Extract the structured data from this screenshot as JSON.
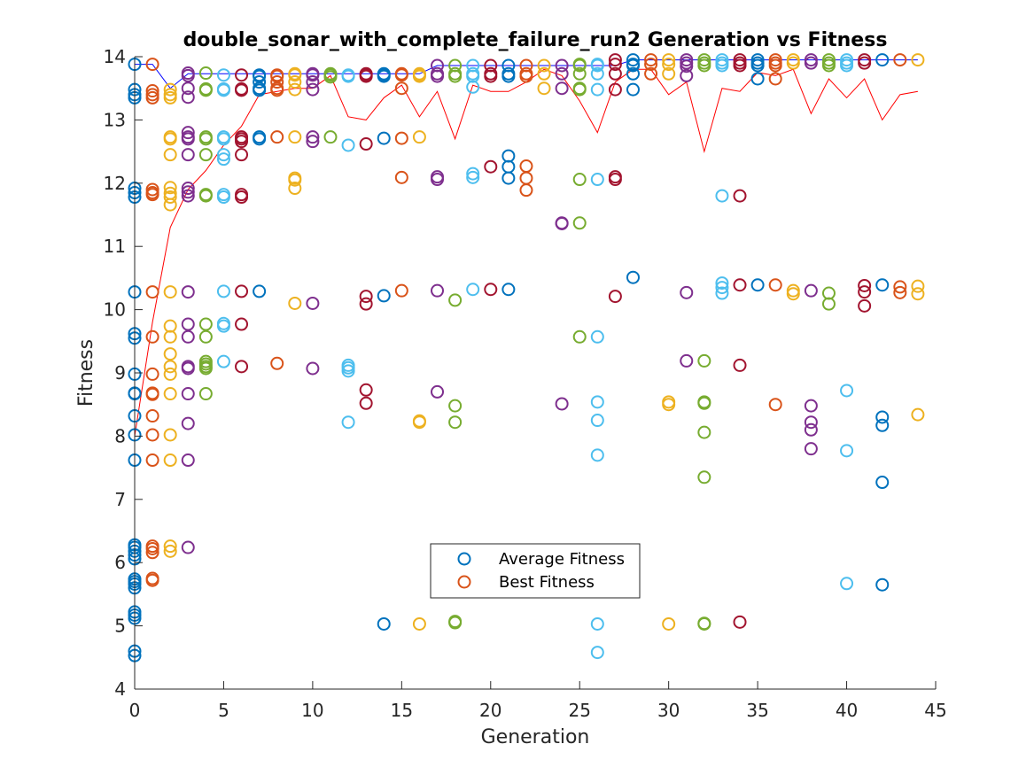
{
  "chart_data": {
    "type": "scatter",
    "title": "double_sonar_with_complete_failure_run2 Generation vs Fitness",
    "xlabel": "Generation",
    "ylabel": "Fitness",
    "xlim": [
      0,
      45
    ],
    "ylim": [
      4,
      14
    ],
    "xticks": [
      0,
      5,
      10,
      15,
      20,
      25,
      30,
      35,
      40,
      45
    ],
    "yticks": [
      4,
      5,
      6,
      7,
      8,
      9,
      10,
      11,
      12,
      13,
      14
    ],
    "grid": false,
    "legend_position": "lower-center",
    "legend": [
      {
        "label": "Average Fitness",
        "color": "#0072BD"
      },
      {
        "label": "Best Fitness",
        "color": "#D95319"
      }
    ],
    "marker_colors": [
      "#0072BD",
      "#D95319",
      "#EDB120",
      "#7E2F8E",
      "#77AC30",
      "#4DBEEE",
      "#A2142F"
    ],
    "lines": [
      {
        "color": "#0000FF",
        "x": [
          0,
          1,
          2,
          3,
          4,
          5,
          6,
          7,
          8,
          9,
          10,
          11,
          12,
          13,
          14,
          15,
          16,
          17,
          18,
          19,
          20,
          21,
          22,
          23,
          24,
          25,
          26,
          27,
          28,
          29,
          30,
          31,
          32,
          33,
          34,
          35,
          36,
          37,
          38,
          39,
          40,
          41,
          42,
          43,
          44
        ],
        "y": [
          13.88,
          13.88,
          13.5,
          13.73,
          13.73,
          13.73,
          13.73,
          13.73,
          13.73,
          13.73,
          13.73,
          13.73,
          13.73,
          13.73,
          13.73,
          13.73,
          13.73,
          13.86,
          13.86,
          13.86,
          13.86,
          13.86,
          13.86,
          13.86,
          13.86,
          13.86,
          13.86,
          13.86,
          13.95,
          13.95,
          13.95,
          13.95,
          13.95,
          13.95,
          13.95,
          13.95,
          13.95,
          13.95,
          13.95,
          13.95,
          13.95,
          13.95,
          13.95,
          13.95,
          13.95
        ]
      },
      {
        "color": "#FF0000",
        "x": [
          0,
          1,
          2,
          3,
          4,
          5,
          6,
          7,
          8,
          9,
          10,
          11,
          12,
          13,
          14,
          15,
          16,
          17,
          18,
          19,
          20,
          21,
          22,
          23,
          24,
          25,
          26,
          27,
          28,
          29,
          30,
          31,
          32,
          33,
          34,
          35,
          36,
          37,
          38,
          39,
          40,
          41,
          42,
          43,
          44
        ],
        "y": [
          8.0,
          9.8,
          11.3,
          11.9,
          12.2,
          12.6,
          12.9,
          13.4,
          13.45,
          13.5,
          13.5,
          13.7,
          13.05,
          13.0,
          13.35,
          13.55,
          13.05,
          13.45,
          12.7,
          13.55,
          13.45,
          13.45,
          13.6,
          13.8,
          13.7,
          13.3,
          12.8,
          13.6,
          13.8,
          13.8,
          13.4,
          13.6,
          12.5,
          13.5,
          13.45,
          13.75,
          13.7,
          13.8,
          13.1,
          13.65,
          13.35,
          13.65,
          13.0,
          13.4,
          13.45
        ]
      }
    ],
    "series": [
      {
        "x": 0,
        "color": 0,
        "values": [
          13.88,
          13.48,
          13.4,
          13.35,
          11.92,
          11.85,
          11.78,
          10.28,
          9.62,
          9.55,
          8.98,
          8.68,
          8.67,
          8.32,
          8.02,
          7.62,
          6.28,
          6.24,
          6.18,
          6.12,
          6.06,
          5.74,
          5.7,
          5.66,
          5.6,
          5.22,
          5.17,
          5.12,
          4.6,
          4.53
        ]
      },
      {
        "x": 1,
        "color": 1,
        "values": [
          13.88,
          13.46,
          13.4,
          13.35,
          11.9,
          11.85,
          11.82,
          10.28,
          9.57,
          8.98,
          8.68,
          8.66,
          8.32,
          8.02,
          7.62,
          6.26,
          6.22,
          6.16,
          5.75,
          5.72
        ]
      },
      {
        "x": 2,
        "color": 2,
        "values": [
          13.48,
          13.4,
          13.35,
          12.73,
          12.7,
          12.45,
          11.93,
          11.84,
          11.78,
          11.66,
          10.28,
          9.74,
          9.57,
          9.3,
          9.1,
          8.98,
          8.67,
          8.02,
          7.62,
          6.26,
          6.18
        ]
      },
      {
        "x": 3,
        "color": 3,
        "values": [
          13.74,
          13.7,
          13.5,
          13.36,
          12.8,
          12.73,
          12.7,
          12.45,
          11.92,
          11.86,
          11.8,
          10.28,
          9.77,
          9.57,
          9.1,
          9.07,
          8.67,
          8.2,
          7.62,
          6.24
        ]
      },
      {
        "x": 4,
        "color": 4,
        "values": [
          13.74,
          13.49,
          13.47,
          12.73,
          12.7,
          12.45,
          11.82,
          11.8,
          9.77,
          9.57,
          9.18,
          9.14,
          9.1,
          9.07,
          8.67
        ]
      },
      {
        "x": 5,
        "color": 5,
        "values": [
          13.71,
          13.49,
          13.47,
          12.73,
          12.7,
          12.45,
          12.38,
          11.82,
          11.78,
          10.29,
          9.78,
          9.74,
          9.18
        ]
      },
      {
        "x": 6,
        "color": 6,
        "values": [
          13.71,
          13.49,
          13.47,
          12.73,
          12.7,
          12.66,
          12.45,
          11.82,
          11.78,
          10.29,
          9.77,
          9.1
        ]
      },
      {
        "x": 7,
        "color": 0,
        "values": [
          13.71,
          13.69,
          13.6,
          13.5,
          13.47,
          12.73,
          12.7,
          10.29
        ]
      },
      {
        "x": 8,
        "color": 1,
        "values": [
          13.71,
          13.69,
          13.6,
          13.5,
          13.47,
          12.73,
          9.15
        ]
      },
      {
        "x": 9,
        "color": 2,
        "values": [
          13.73,
          13.71,
          13.6,
          13.48,
          12.73,
          12.08,
          12.05,
          11.92,
          10.1
        ]
      },
      {
        "x": 10,
        "color": 3,
        "values": [
          13.73,
          13.71,
          13.6,
          13.48,
          12.73,
          12.66,
          10.1,
          9.07
        ]
      },
      {
        "x": 11,
        "color": 4,
        "values": [
          13.73,
          13.71,
          13.68,
          12.73
        ]
      },
      {
        "x": 12,
        "color": 5,
        "values": [
          13.71,
          13.69,
          12.6,
          9.12,
          9.08,
          9.03,
          8.22
        ]
      },
      {
        "x": 13,
        "color": 6,
        "values": [
          13.73,
          13.71,
          13.69,
          12.62,
          10.21,
          10.09,
          8.73,
          8.52
        ]
      },
      {
        "x": 14,
        "color": 0,
        "values": [
          13.73,
          13.71,
          13.69,
          12.71,
          10.22,
          5.03
        ]
      },
      {
        "x": 15,
        "color": 1,
        "values": [
          13.73,
          13.71,
          13.5,
          12.71,
          12.09,
          10.3
        ]
      },
      {
        "x": 16,
        "color": 2,
        "values": [
          13.73,
          13.71,
          13.69,
          12.73,
          8.24,
          8.22,
          5.03
        ]
      },
      {
        "x": 17,
        "color": 3,
        "values": [
          13.86,
          13.73,
          13.69,
          12.1,
          12.06,
          10.3,
          8.7
        ]
      },
      {
        "x": 18,
        "color": 4,
        "values": [
          13.86,
          13.73,
          13.69,
          10.15,
          8.48,
          8.22,
          5.07,
          5.05
        ]
      },
      {
        "x": 19,
        "color": 5,
        "values": [
          13.86,
          13.73,
          13.69,
          13.52,
          12.15,
          12.09,
          10.32
        ]
      },
      {
        "x": 20,
        "color": 6,
        "values": [
          13.86,
          13.73,
          13.69,
          12.26,
          10.32
        ]
      },
      {
        "x": 21,
        "color": 0,
        "values": [
          13.86,
          13.73,
          13.69,
          12.43,
          12.26,
          12.08,
          10.32
        ]
      },
      {
        "x": 22,
        "color": 1,
        "values": [
          13.86,
          13.73,
          13.69,
          12.27,
          12.08,
          11.89
        ]
      },
      {
        "x": 23,
        "color": 2,
        "values": [
          13.86,
          13.73,
          13.5
        ]
      },
      {
        "x": 24,
        "color": 3,
        "values": [
          13.86,
          13.73,
          13.5,
          11.37,
          11.36,
          8.51
        ]
      },
      {
        "x": 25,
        "color": 4,
        "values": [
          13.88,
          13.86,
          13.73,
          13.5,
          13.48,
          12.06,
          11.37,
          9.57
        ]
      },
      {
        "x": 26,
        "color": 5,
        "values": [
          13.88,
          13.86,
          13.73,
          13.48,
          12.06,
          9.57,
          8.54,
          8.25,
          7.7,
          5.03,
          4.58
        ]
      },
      {
        "x": 27,
        "color": 6,
        "values": [
          13.95,
          13.88,
          13.73,
          13.48,
          12.1,
          12.06,
          10.21
        ]
      },
      {
        "x": 28,
        "color": 0,
        "values": [
          13.95,
          13.88,
          13.86,
          13.73,
          13.48,
          10.51
        ]
      },
      {
        "x": 29,
        "color": 1,
        "values": [
          13.95,
          13.88,
          13.73
        ]
      },
      {
        "x": 30,
        "color": 2,
        "values": [
          13.95,
          13.88,
          13.73,
          8.54,
          8.5,
          5.03
        ]
      },
      {
        "x": 31,
        "color": 3,
        "values": [
          13.95,
          13.9,
          13.85,
          13.7,
          10.27,
          9.19
        ]
      },
      {
        "x": 32,
        "color": 4,
        "values": [
          13.95,
          13.9,
          13.86,
          9.19,
          8.54,
          8.52,
          8.06,
          7.35,
          5.04,
          5.03
        ]
      },
      {
        "x": 33,
        "color": 5,
        "values": [
          13.95,
          13.9,
          13.86,
          11.8,
          10.42,
          10.35,
          10.26
        ]
      },
      {
        "x": 34,
        "color": 6,
        "values": [
          13.95,
          13.9,
          13.86,
          11.8,
          10.39,
          9.12,
          5.06
        ]
      },
      {
        "x": 35,
        "color": 0,
        "values": [
          13.95,
          13.9,
          13.86,
          13.65,
          10.39
        ]
      },
      {
        "x": 36,
        "color": 1,
        "values": [
          13.95,
          13.9,
          13.86,
          13.65,
          10.39,
          8.5
        ]
      },
      {
        "x": 37,
        "color": 2,
        "values": [
          13.95,
          13.9,
          10.3,
          10.25
        ]
      },
      {
        "x": 38,
        "color": 3,
        "values": [
          13.95,
          13.9,
          10.3,
          8.48,
          8.22,
          8.1,
          7.8
        ]
      },
      {
        "x": 39,
        "color": 4,
        "values": [
          13.95,
          13.9,
          13.86,
          10.26,
          10.09
        ]
      },
      {
        "x": 40,
        "color": 5,
        "values": [
          13.95,
          13.9,
          13.86,
          8.72,
          7.77,
          5.67
        ]
      },
      {
        "x": 41,
        "color": 6,
        "values": [
          13.95,
          13.9,
          10.38,
          10.28,
          10.06
        ]
      },
      {
        "x": 42,
        "color": 0,
        "values": [
          13.95,
          10.39,
          8.3,
          8.17,
          7.27,
          5.65
        ]
      },
      {
        "x": 43,
        "color": 1,
        "values": [
          13.95,
          10.36,
          10.27
        ]
      },
      {
        "x": 44,
        "color": 2,
        "values": [
          13.95,
          10.37,
          10.25,
          8.34
        ]
      }
    ]
  }
}
